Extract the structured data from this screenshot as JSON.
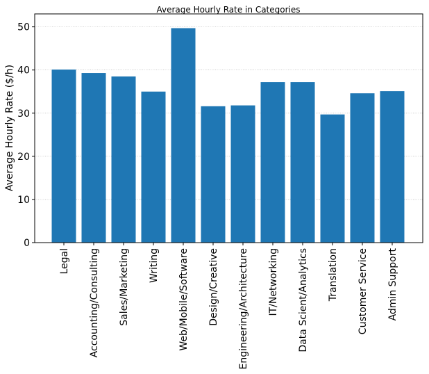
{
  "chart_data": {
    "type": "bar",
    "title": "Average Hourly Rate in Categories",
    "xlabel": "",
    "ylabel": "Average Hourly Rate ($/h)",
    "ylim": [
      0,
      53
    ],
    "yticks": [
      0,
      10,
      20,
      30,
      40,
      50
    ],
    "grid": "horizontal dotted",
    "bar_color": "#1f77b4",
    "categories": [
      "Legal",
      "Accounting/Consulting",
      "Sales/Marketing",
      "Writing",
      "Web/Mobile/Software",
      "Design/Creative",
      "Engineering/Architecture",
      "IT/Networking",
      "Data Scient/Analytics",
      "Translation",
      "Customer Service",
      "Admin Support"
    ],
    "values": [
      40.1,
      39.3,
      38.5,
      35.0,
      49.7,
      31.6,
      31.8,
      37.2,
      37.2,
      29.7,
      34.6,
      35.1
    ]
  }
}
